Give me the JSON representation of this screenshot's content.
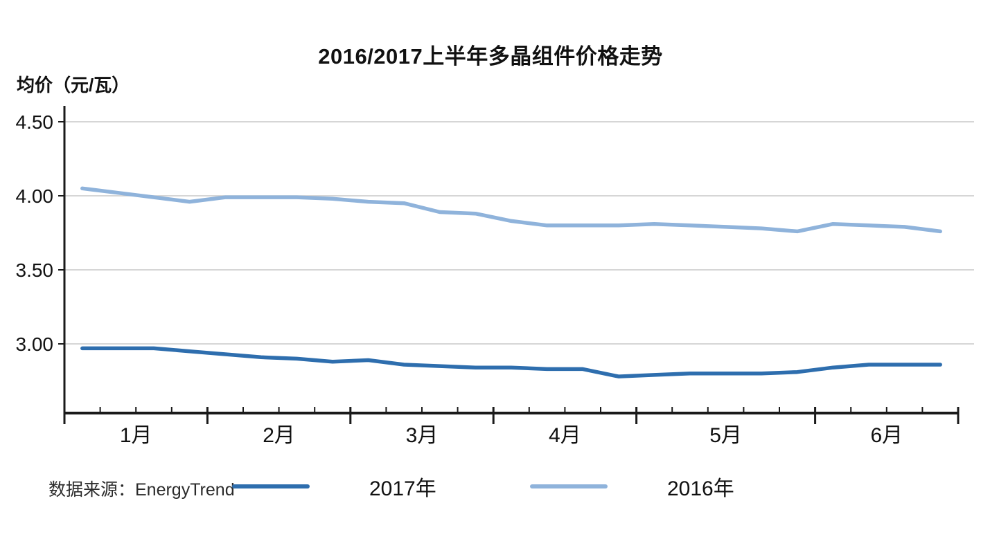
{
  "page": {
    "title": "2016/2017上半年多晶组件价格走势",
    "y_axis_label": "均价（元/瓦）",
    "source_note": "数据来源：EnergyTrend"
  },
  "legend": [
    {
      "label": "2017年",
      "color": "#2E6EAE"
    },
    {
      "label": "2016年",
      "color": "#8FB3DB"
    }
  ],
  "colors": {
    "axis": "#1a1a1a",
    "gridline": "#c9c9c9",
    "series_2017": "#2E6EAE",
    "series_2016": "#8FB3DB"
  },
  "chart_data": {
    "type": "line",
    "title": "2016/2017上半年多晶组件价格走势",
    "ylabel": "均价（元/瓦）",
    "source": "数据来源：EnergyTrend",
    "x_months": [
      "1月",
      "2月",
      "3月",
      "4月",
      "5月",
      "6月"
    ],
    "weeks_per_month": [
      4,
      4,
      4,
      4,
      5,
      4
    ],
    "x_unit": "weekly data points, mid-interval, Jan–Jun",
    "y_ticks": [
      4.5,
      4.0,
      3.5,
      3.0
    ],
    "y_tick_labels": [
      "4.50",
      "4.00",
      "3.50",
      "3.00"
    ],
    "ylim": [
      2.53,
      4.6
    ],
    "grid": "horizontal",
    "legend_position": "bottom",
    "series": [
      {
        "name": "2017年",
        "color": "#2E6EAE",
        "values": [
          2.97,
          2.97,
          2.97,
          2.95,
          2.93,
          2.91,
          2.9,
          2.88,
          2.89,
          2.86,
          2.85,
          2.84,
          2.84,
          2.83,
          2.83,
          2.78,
          2.79,
          2.8,
          2.8,
          2.8,
          2.81,
          2.84,
          2.86,
          2.86,
          2.86
        ]
      },
      {
        "name": "2016年",
        "color": "#8FB3DB",
        "values": [
          4.05,
          4.02,
          3.99,
          3.96,
          3.99,
          3.99,
          3.99,
          3.98,
          3.96,
          3.95,
          3.89,
          3.88,
          3.83,
          3.8,
          3.8,
          3.8,
          3.81,
          3.8,
          3.79,
          3.78,
          3.76,
          3.81,
          3.8,
          3.79,
          3.76
        ]
      }
    ]
  }
}
